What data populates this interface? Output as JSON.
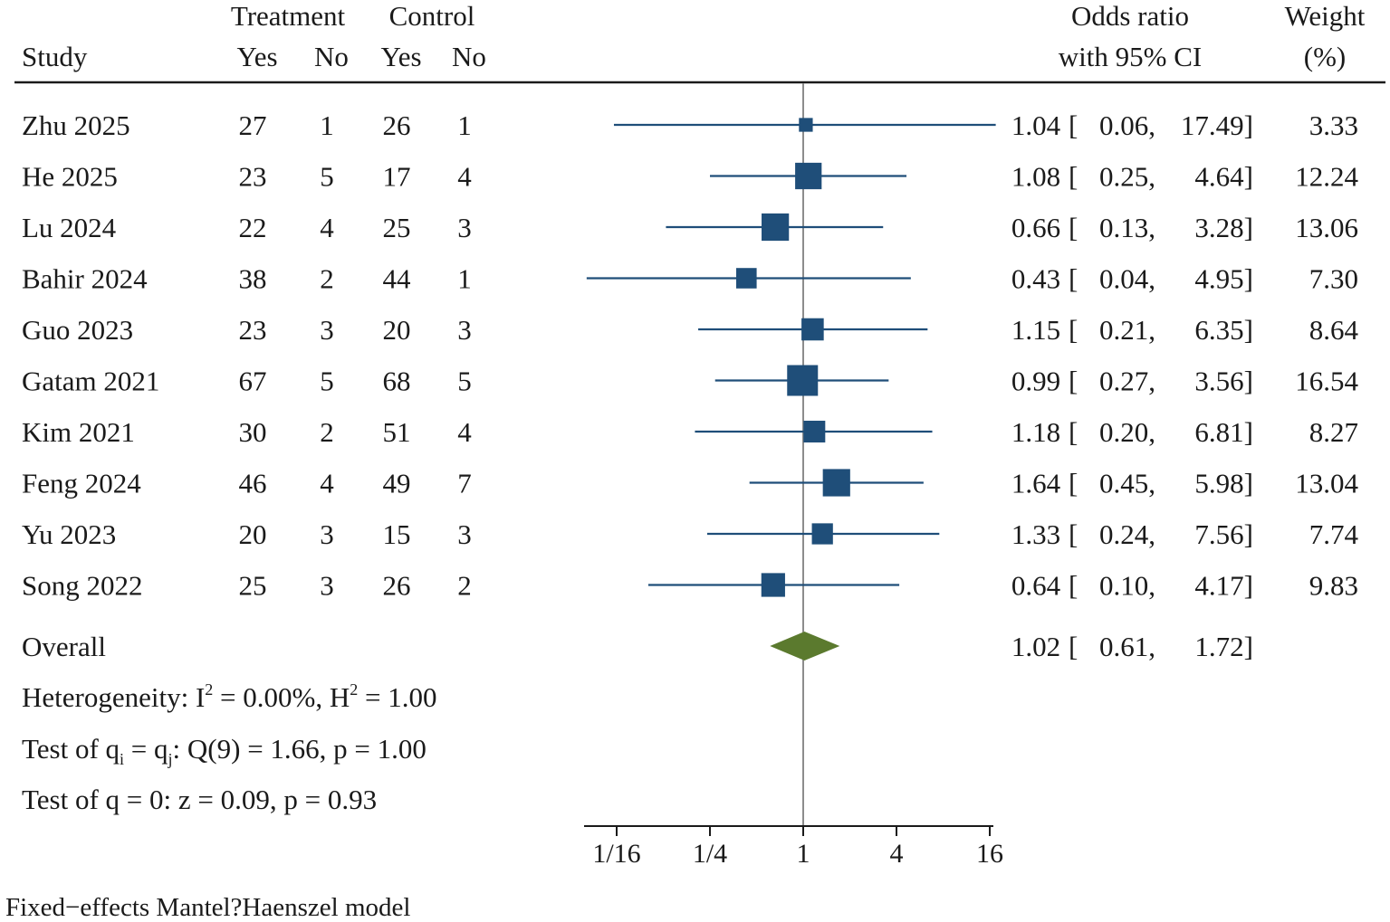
{
  "headers": {
    "study": "Study",
    "treatment": "Treatment",
    "control": "Control",
    "yes": "Yes",
    "no": "No",
    "or_line1": "Odds ratio",
    "or_line2": "with 95% CI",
    "weight_line1": "Weight",
    "weight_line2": "(%)"
  },
  "chart_data": {
    "type": "forest",
    "scale": "log2",
    "null_value": 1,
    "x_ticks": [
      {
        "value": 0.0625,
        "label": "1/16"
      },
      {
        "value": 0.25,
        "label": "1/4"
      },
      {
        "value": 1,
        "label": "1"
      },
      {
        "value": 4,
        "label": "4"
      },
      {
        "value": 16,
        "label": "16"
      }
    ],
    "xlim": [
      0.0312,
      17.49
    ],
    "studies": [
      {
        "study": "Zhu 2025",
        "t_yes": "27",
        "t_no": "1",
        "c_yes": "26",
        "c_no": "1",
        "or": 1.04,
        "lo": 0.06,
        "hi": 17.49,
        "or_text": "1.04",
        "lo_text": "0.06,",
        "hi_text": "17.49]",
        "weight": 3.33,
        "weight_text": "3.33"
      },
      {
        "study": "He 2025",
        "t_yes": "23",
        "t_no": "5",
        "c_yes": "17",
        "c_no": "4",
        "or": 1.08,
        "lo": 0.25,
        "hi": 4.64,
        "or_text": "1.08",
        "lo_text": "0.25,",
        "hi_text": "4.64]",
        "weight": 12.24,
        "weight_text": "12.24"
      },
      {
        "study": "Lu 2024",
        "t_yes": "22",
        "t_no": "4",
        "c_yes": "25",
        "c_no": "3",
        "or": 0.66,
        "lo": 0.13,
        "hi": 3.28,
        "or_text": "0.66",
        "lo_text": "0.13,",
        "hi_text": "3.28]",
        "weight": 13.06,
        "weight_text": "13.06"
      },
      {
        "study": "Bahir 2024",
        "t_yes": "38",
        "t_no": "2",
        "c_yes": "44",
        "c_no": "1",
        "or": 0.43,
        "lo": 0.04,
        "hi": 4.95,
        "or_text": "0.43",
        "lo_text": "0.04,",
        "hi_text": "4.95]",
        "weight": 7.3,
        "weight_text": "7.30"
      },
      {
        "study": "Guo 2023",
        "t_yes": "23",
        "t_no": "3",
        "c_yes": "20",
        "c_no": "3",
        "or": 1.15,
        "lo": 0.21,
        "hi": 6.35,
        "or_text": "1.15",
        "lo_text": "0.21,",
        "hi_text": "6.35]",
        "weight": 8.64,
        "weight_text": "8.64"
      },
      {
        "study": "Gatam 2021",
        "t_yes": "67",
        "t_no": "5",
        "c_yes": "68",
        "c_no": "5",
        "or": 0.99,
        "lo": 0.27,
        "hi": 3.56,
        "or_text": "0.99",
        "lo_text": "0.27,",
        "hi_text": "3.56]",
        "weight": 16.54,
        "weight_text": "16.54"
      },
      {
        "study": "Kim 2021",
        "t_yes": "30",
        "t_no": "2",
        "c_yes": "51",
        "c_no": "4",
        "or": 1.18,
        "lo": 0.2,
        "hi": 6.81,
        "or_text": "1.18",
        "lo_text": "0.20,",
        "hi_text": "6.81]",
        "weight": 8.27,
        "weight_text": "8.27"
      },
      {
        "study": "Feng 2024",
        "t_yes": "46",
        "t_no": "4",
        "c_yes": "49",
        "c_no": "7",
        "or": 1.64,
        "lo": 0.45,
        "hi": 5.98,
        "or_text": "1.64",
        "lo_text": "0.45,",
        "hi_text": "5.98]",
        "weight": 13.04,
        "weight_text": "13.04"
      },
      {
        "study": "Yu 2023",
        "t_yes": "20",
        "t_no": "3",
        "c_yes": "15",
        "c_no": "3",
        "or": 1.33,
        "lo": 0.24,
        "hi": 7.56,
        "or_text": "1.33",
        "lo_text": "0.24,",
        "hi_text": "7.56]",
        "weight": 7.74,
        "weight_text": "7.74"
      },
      {
        "study": "Song 2022",
        "t_yes": "25",
        "t_no": "3",
        "c_yes": "26",
        "c_no": "2",
        "or": 0.64,
        "lo": 0.1,
        "hi": 4.17,
        "or_text": "0.64",
        "lo_text": "0.10,",
        "hi_text": "4.17]",
        "weight": 9.83,
        "weight_text": "9.83"
      }
    ],
    "overall": {
      "label": "Overall",
      "or": 1.02,
      "lo": 0.61,
      "hi": 1.72,
      "or_text": "1.02",
      "lo_text": "0.61,",
      "hi_text": "1.72]"
    },
    "colors": {
      "study_marker": "#1f4e79",
      "overall_diamond": "#5b7a2e",
      "null_line": "#8c8c8c",
      "axis": "#1a1a1a"
    }
  },
  "stats": {
    "het_prefix": "Heterogeneity: I",
    "het_sup1": "2",
    "het_mid": " = 0.00%, H",
    "het_sup2": "2",
    "het_end": " = 1.00",
    "q_prefix": "Test of q",
    "q_sub1": "i",
    "q_mid": " = q",
    "q_sub2": "j",
    "q_end": ": Q(9) = 1.66, p = 1.00",
    "z_text": "Test of q = 0: z = 0.09, p = 0.93"
  },
  "footnote": "Fixed−effects Mantel?Haenszel model"
}
